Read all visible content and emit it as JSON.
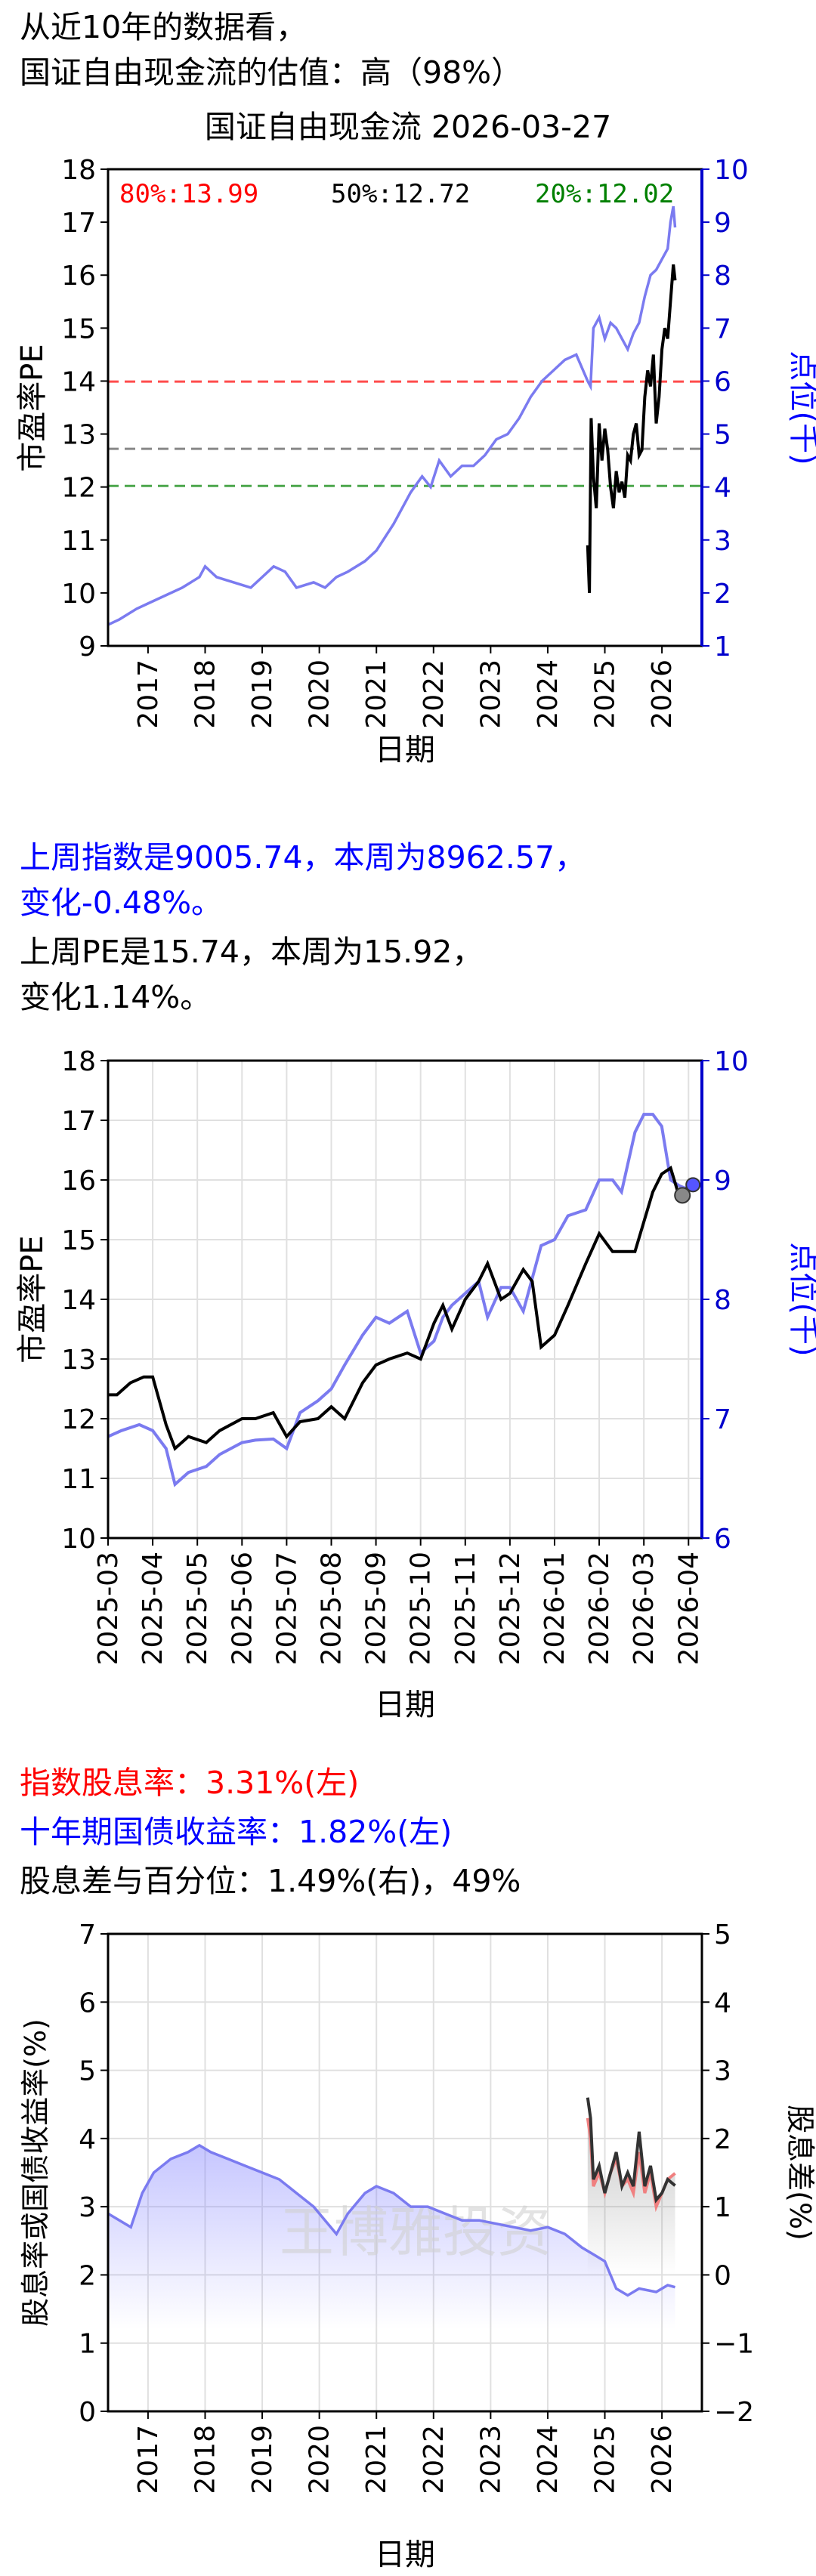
{
  "header": {
    "line1": "从近10年的数据看，",
    "line2": "国证自由现金流的估值：高（98%）"
  },
  "weekly": {
    "line1": "上周指数是9005.74，本周为8962.57，",
    "line2": "变化-0.48%。",
    "line3": "上周PE是15.74，本周为15.92，",
    "line4": "变化1.14%。"
  },
  "dividend": {
    "line1": "指数股息率：3.31%(左)",
    "line2": "十年期国债收益率：1.82%(左)",
    "line3": "股息差与百分位：1.49%(右)，49%"
  },
  "colors": {
    "index": "#7b7bf0",
    "pe": "#000000",
    "p80": "#ff0000",
    "p50": "#555555",
    "p20": "#008000",
    "right_axis": "#0000cc",
    "dividend": "#333333",
    "spread": "#f08080"
  },
  "chart_data": [
    {
      "type": "line",
      "title": "国证自由现金流 2026-03-27",
      "xlabel": "日期",
      "ylabel": "市盈率PE",
      "y2label": "点位(千)",
      "ylim": [
        9,
        18
      ],
      "y2lim": [
        1,
        10
      ],
      "yticks": [
        "9",
        "10",
        "11",
        "12",
        "13",
        "14",
        "15",
        "16",
        "17",
        "18"
      ],
      "y2ticks": [
        "1",
        "2",
        "3",
        "4",
        "5",
        "6",
        "7",
        "8",
        "9",
        "10"
      ],
      "xticks": [
        "2017",
        "2018",
        "2019",
        "2020",
        "2021",
        "2022",
        "2023",
        "2024",
        "2025",
        "2026"
      ],
      "xlim": [
        2016.3,
        2026.7
      ],
      "grid": false,
      "percentiles": [
        {
          "label": "80%:13.99",
          "value": 13.99
        },
        {
          "label": "50%:12.72",
          "value": 12.72
        },
        {
          "label": "20%:12.02",
          "value": 12.02
        }
      ],
      "series": [
        {
          "axis": "right",
          "x": [
            2016.3,
            2016.5,
            2016.8,
            2017.0,
            2017.3,
            2017.6,
            2017.9,
            2018.0,
            2018.2,
            2018.5,
            2018.8,
            2019.0,
            2019.2,
            2019.4,
            2019.6,
            2019.9,
            2020.1,
            2020.3,
            2020.5,
            2020.8,
            2021.0,
            2021.3,
            2021.6,
            2021.8,
            2021.95,
            2022.1,
            2022.3,
            2022.5,
            2022.7,
            2022.9,
            2023.1,
            2023.3,
            2023.5,
            2023.7,
            2023.9,
            2024.1,
            2024.3,
            2024.5,
            2024.7,
            2024.75,
            2024.8,
            2024.9,
            2025.0,
            2025.1,
            2025.2,
            2025.3,
            2025.4,
            2025.5,
            2025.6,
            2025.7,
            2025.8,
            2025.9,
            2026.0,
            2026.1,
            2026.15,
            2026.2,
            2026.23
          ],
          "y": [
            1.4,
            1.5,
            1.7,
            1.8,
            1.95,
            2.1,
            2.3,
            2.5,
            2.3,
            2.2,
            2.1,
            2.3,
            2.5,
            2.4,
            2.1,
            2.2,
            2.1,
            2.3,
            2.4,
            2.6,
            2.8,
            3.3,
            3.9,
            4.2,
            4.0,
            4.5,
            4.2,
            4.4,
            4.4,
            4.6,
            4.9,
            5.0,
            5.3,
            5.7,
            6.0,
            6.2,
            6.4,
            6.5,
            6.0,
            5.9,
            7.0,
            7.2,
            6.8,
            7.1,
            7.0,
            6.8,
            6.6,
            6.9,
            7.1,
            7.6,
            8.0,
            8.1,
            8.3,
            8.5,
            9.0,
            9.3,
            8.9
          ]
        },
        {
          "axis": "left",
          "x": [
            2024.7,
            2024.73,
            2024.76,
            2024.8,
            2024.85,
            2024.9,
            2024.95,
            2025.0,
            2025.05,
            2025.1,
            2025.15,
            2025.2,
            2025.25,
            2025.3,
            2025.35,
            2025.4,
            2025.45,
            2025.5,
            2025.55,
            2025.6,
            2025.65,
            2025.7,
            2025.75,
            2025.8,
            2025.85,
            2025.9,
            2025.95,
            2026.0,
            2026.05,
            2026.1,
            2026.15,
            2026.2,
            2026.23
          ],
          "y": [
            10.9,
            10.0,
            13.3,
            12.2,
            11.6,
            13.2,
            12.5,
            13.1,
            12.7,
            12.0,
            11.6,
            12.3,
            11.9,
            12.1,
            11.8,
            12.6,
            12.5,
            13.0,
            13.2,
            12.6,
            12.7,
            13.7,
            14.2,
            13.9,
            14.5,
            13.2,
            13.7,
            14.6,
            15.0,
            14.8,
            15.5,
            16.2,
            15.9
          ]
        }
      ]
    },
    {
      "type": "line",
      "xlabel": "日期",
      "ylabel": "市盈率PE",
      "y2label": "点位(千)",
      "ylim": [
        10,
        18
      ],
      "y2lim": [
        6,
        10
      ],
      "yticks": [
        "10",
        "11",
        "12",
        "13",
        "14",
        "15",
        "16",
        "17",
        "18"
      ],
      "y2ticks": [
        "6",
        "7",
        "8",
        "9",
        "10"
      ],
      "xticks": [
        "2025-03",
        "2025-04",
        "2025-05",
        "2025-06",
        "2025-07",
        "2025-08",
        "2025-09",
        "2025-10",
        "2025-11",
        "2025-12",
        "2026-01",
        "2026-02",
        "2026-03",
        "2026-04"
      ],
      "xlim": [
        0,
        13.3
      ],
      "grid": true,
      "series": [
        {
          "axis": "right",
          "x": [
            0,
            0.3,
            0.7,
            1.0,
            1.3,
            1.5,
            1.8,
            2.2,
            2.5,
            3.0,
            3.3,
            3.7,
            4.0,
            4.3,
            4.7,
            5.0,
            5.3,
            5.7,
            6.0,
            6.3,
            6.7,
            7.0,
            7.3,
            7.5,
            7.7,
            8.0,
            8.3,
            8.5,
            8.8,
            9.0,
            9.3,
            9.7,
            10.0,
            10.3,
            10.7,
            11.0,
            11.3,
            11.5,
            11.8,
            12.0,
            12.2,
            12.4,
            12.6,
            12.8,
            13.0,
            13.1
          ],
          "y": [
            6.85,
            6.9,
            6.95,
            6.9,
            6.75,
            6.45,
            6.55,
            6.6,
            6.7,
            6.8,
            6.82,
            6.83,
            6.75,
            7.05,
            7.15,
            7.25,
            7.45,
            7.7,
            7.85,
            7.8,
            7.9,
            7.55,
            7.65,
            7.85,
            7.95,
            8.05,
            8.15,
            7.85,
            8.1,
            8.1,
            7.9,
            8.45,
            8.5,
            8.7,
            8.75,
            9.0,
            9.0,
            8.9,
            9.4,
            9.55,
            9.55,
            9.45,
            9.0,
            8.95,
            8.92,
            8.96
          ]
        },
        {
          "axis": "left",
          "x": [
            0,
            0.2,
            0.5,
            0.8,
            1.0,
            1.3,
            1.5,
            1.8,
            2.2,
            2.5,
            3.0,
            3.3,
            3.7,
            4.0,
            4.3,
            4.7,
            5.0,
            5.3,
            5.7,
            6.0,
            6.3,
            6.7,
            7.0,
            7.3,
            7.5,
            7.7,
            8.0,
            8.3,
            8.5,
            8.8,
            9.0,
            9.3,
            9.5,
            9.7,
            10.0,
            10.3,
            10.7,
            11.0,
            11.3,
            11.5,
            11.8,
            12.0,
            12.2,
            12.4,
            12.6,
            12.8,
            13.0,
            13.1
          ],
          "y": [
            12.4,
            12.4,
            12.6,
            12.7,
            12.7,
            11.9,
            11.5,
            11.7,
            11.6,
            11.8,
            12.0,
            12.0,
            12.1,
            11.7,
            11.95,
            12.0,
            12.2,
            12.0,
            12.6,
            12.9,
            13.0,
            13.1,
            13.0,
            13.6,
            13.9,
            13.5,
            14.0,
            14.3,
            14.6,
            14.0,
            14.1,
            14.5,
            14.3,
            13.2,
            13.4,
            13.9,
            14.6,
            15.1,
            14.8,
            14.8,
            14.8,
            15.3,
            15.8,
            16.1,
            16.2,
            15.7,
            15.9,
            15.92
          ]
        }
      ]
    },
    {
      "type": "line",
      "xlabel": "日期",
      "ylabel": "股息率或国债收益率(%)",
      "y2label": "股息差(%)",
      "ylim": [
        0,
        7
      ],
      "y2lim": [
        -2,
        5
      ],
      "yticks": [
        "0",
        "1",
        "2",
        "3",
        "4",
        "5",
        "6",
        "7"
      ],
      "y2ticks": [
        "−2",
        "−1",
        "0",
        "1",
        "2",
        "3",
        "4",
        "5"
      ],
      "xticks": [
        "2017",
        "2018",
        "2019",
        "2020",
        "2021",
        "2022",
        "2023",
        "2024",
        "2025",
        "2026"
      ],
      "xlim": [
        2016.3,
        2026.7
      ],
      "grid": true,
      "watermark": "王博雅投资",
      "series": [
        {
          "axis": "left",
          "x": [
            2016.3,
            2016.5,
            2016.7,
            2016.9,
            2017.1,
            2017.4,
            2017.7,
            2017.9,
            2018.1,
            2018.4,
            2018.7,
            2019.0,
            2019.3,
            2019.6,
            2019.9,
            2020.1,
            2020.3,
            2020.5,
            2020.8,
            2021.0,
            2021.3,
            2021.6,
            2021.9,
            2022.2,
            2022.5,
            2022.8,
            2023.1,
            2023.4,
            2023.7,
            2024.0,
            2024.3,
            2024.6,
            2024.8,
            2025.0,
            2025.2,
            2025.4,
            2025.6,
            2025.9,
            2026.1,
            2026.23
          ],
          "y": [
            2.9,
            2.8,
            2.7,
            3.2,
            3.5,
            3.7,
            3.8,
            3.9,
            3.8,
            3.7,
            3.6,
            3.5,
            3.4,
            3.2,
            3.0,
            2.8,
            2.6,
            2.9,
            3.2,
            3.3,
            3.2,
            3.0,
            3.0,
            2.9,
            2.8,
            2.8,
            2.75,
            2.7,
            2.65,
            2.7,
            2.6,
            2.4,
            2.3,
            2.2,
            1.8,
            1.7,
            1.8,
            1.75,
            1.85,
            1.82
          ]
        },
        {
          "axis": "left",
          "x": [
            2024.7,
            2024.75,
            2024.8,
            2024.9,
            2025.0,
            2025.1,
            2025.2,
            2025.3,
            2025.4,
            2025.5,
            2025.6,
            2025.7,
            2025.8,
            2025.9,
            2026.0,
            2026.1,
            2026.23
          ],
          "y": [
            4.6,
            4.3,
            3.4,
            3.6,
            3.2,
            3.5,
            3.8,
            3.3,
            3.5,
            3.3,
            4.1,
            3.3,
            3.6,
            3.1,
            3.2,
            3.4,
            3.31
          ]
        },
        {
          "axis": "right",
          "x": [
            2024.7,
            2024.75,
            2024.8,
            2024.9,
            2025.0,
            2025.1,
            2025.2,
            2025.3,
            2025.4,
            2025.5,
            2025.6,
            2025.7,
            2025.8,
            2025.9,
            2026.0,
            2026.1,
            2026.23
          ],
          "y": [
            2.3,
            2.0,
            1.3,
            1.5,
            1.2,
            1.5,
            1.7,
            1.3,
            1.4,
            1.2,
            1.8,
            1.2,
            1.5,
            1.0,
            1.2,
            1.4,
            1.49
          ]
        }
      ]
    }
  ]
}
